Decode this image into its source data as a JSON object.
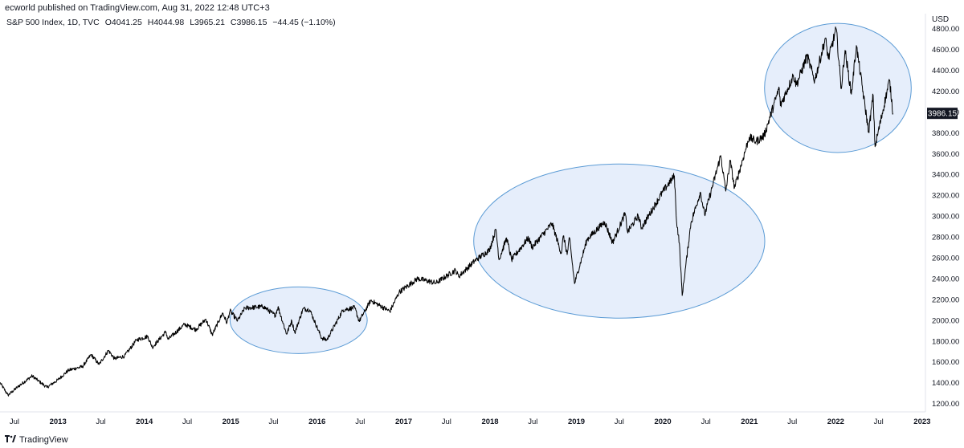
{
  "header": {
    "published": "ecworld published on TradingView.com, Aug 31, 2022 12:48 UTC+3"
  },
  "legend": {
    "symbol": "S&P 500 Index, 1D, TVC",
    "open": "O4041.25",
    "high": "H4044.98",
    "low": "L3965.21",
    "close": "C3986.15",
    "change": "−44.45 (−1.10%)"
  },
  "footer": {
    "brand": "TradingView",
    "logo": "tradingview-logo-icon"
  },
  "colors": {
    "line": "#000000",
    "ellipse_stroke": "#5b9bd5",
    "ellipse_fill": "#e6eefb",
    "price_tag": "#131722",
    "grid": "#ffffff"
  },
  "chart_data": {
    "type": "line",
    "title": "S&P 500 Index, 1D, TVC",
    "currency_label": "USD",
    "last_price_label": "3986.15",
    "y_axis": {
      "ylim": [
        1120,
        4920
      ],
      "ticks": [
        1200,
        1400,
        1600,
        1800,
        2000,
        2200,
        2400,
        2600,
        2800,
        3000,
        3200,
        3400,
        3600,
        3800,
        4000,
        4200,
        4400,
        4600,
        4800
      ],
      "tick_labels": [
        "1200.00",
        "1400.00",
        "1600.00",
        "1800.00",
        "2000.00",
        "2200.00",
        "2400.00",
        "2600.00",
        "2800.00",
        "3000.00",
        "3200.00",
        "3400.00",
        "3600.00",
        "3800.00",
        "4000.00",
        "4200.00",
        "4400.00",
        "4600.00",
        "4800.00"
      ]
    },
    "x_axis": {
      "xlim": [
        "2012-05-01",
        "2023-01-15"
      ],
      "ticks": [
        {
          "date": "2012-07-01",
          "label": "Jul",
          "bold": false
        },
        {
          "date": "2013-01-01",
          "label": "2013",
          "bold": true
        },
        {
          "date": "2013-07-01",
          "label": "Jul",
          "bold": false
        },
        {
          "date": "2014-01-01",
          "label": "2014",
          "bold": true
        },
        {
          "date": "2014-07-01",
          "label": "Jul",
          "bold": false
        },
        {
          "date": "2015-01-01",
          "label": "2015",
          "bold": true
        },
        {
          "date": "2015-07-01",
          "label": "Jul",
          "bold": false
        },
        {
          "date": "2016-01-01",
          "label": "2016",
          "bold": true
        },
        {
          "date": "2016-07-01",
          "label": "Jul",
          "bold": false
        },
        {
          "date": "2017-01-01",
          "label": "2017",
          "bold": true
        },
        {
          "date": "2017-07-01",
          "label": "Jul",
          "bold": false
        },
        {
          "date": "2018-01-01",
          "label": "2018",
          "bold": true
        },
        {
          "date": "2018-07-01",
          "label": "Jul",
          "bold": false
        },
        {
          "date": "2019-01-01",
          "label": "2019",
          "bold": true
        },
        {
          "date": "2019-07-01",
          "label": "Jul",
          "bold": false
        },
        {
          "date": "2020-01-01",
          "label": "2020",
          "bold": true
        },
        {
          "date": "2020-07-01",
          "label": "Jul",
          "bold": false
        },
        {
          "date": "2021-01-01",
          "label": "2021",
          "bold": true
        },
        {
          "date": "2021-07-01",
          "label": "Jul",
          "bold": false
        },
        {
          "date": "2022-01-01",
          "label": "2022",
          "bold": true
        },
        {
          "date": "2022-07-01",
          "label": "Jul",
          "bold": false
        },
        {
          "date": "2023-01-01",
          "label": "2023",
          "bold": true
        }
      ]
    },
    "series": [
      {
        "values": [
          [
            "2012-05-01",
            1400
          ],
          [
            "2012-06-04",
            1280
          ],
          [
            "2012-07-15",
            1360
          ],
          [
            "2012-09-14",
            1465
          ],
          [
            "2012-11-15",
            1355
          ],
          [
            "2012-12-31",
            1426
          ],
          [
            "2013-02-15",
            1520
          ],
          [
            "2013-04-15",
            1555
          ],
          [
            "2013-05-21",
            1670
          ],
          [
            "2013-06-24",
            1575
          ],
          [
            "2013-08-02",
            1710
          ],
          [
            "2013-08-28",
            1630
          ],
          [
            "2013-10-09",
            1655
          ],
          [
            "2013-11-29",
            1810
          ],
          [
            "2014-01-15",
            1845
          ],
          [
            "2014-02-04",
            1740
          ],
          [
            "2014-04-02",
            1890
          ],
          [
            "2014-04-11",
            1815
          ],
          [
            "2014-06-20",
            1960
          ],
          [
            "2014-08-07",
            1910
          ],
          [
            "2014-09-18",
            2010
          ],
          [
            "2014-10-15",
            1860
          ],
          [
            "2014-11-28",
            2070
          ],
          [
            "2014-12-16",
            1975
          ],
          [
            "2014-12-29",
            2090
          ],
          [
            "2015-01-30",
            1995
          ],
          [
            "2015-03-02",
            2117
          ],
          [
            "2015-05-20",
            2130
          ],
          [
            "2015-07-08",
            2046
          ],
          [
            "2015-07-20",
            2128
          ],
          [
            "2015-08-25",
            1867
          ],
          [
            "2015-09-16",
            1995
          ],
          [
            "2015-09-29",
            1880
          ],
          [
            "2015-11-03",
            2110
          ],
          [
            "2015-12-01",
            2100
          ],
          [
            "2016-01-20",
            1829
          ],
          [
            "2016-02-11",
            1810
          ],
          [
            "2016-04-20",
            2100
          ],
          [
            "2016-06-08",
            2120
          ],
          [
            "2016-06-27",
            1990
          ],
          [
            "2016-08-15",
            2190
          ],
          [
            "2016-11-04",
            2085
          ],
          [
            "2016-12-13",
            2270
          ],
          [
            "2017-03-01",
            2400
          ],
          [
            "2017-05-17",
            2357
          ],
          [
            "2017-08-08",
            2480
          ],
          [
            "2017-08-21",
            2420
          ],
          [
            "2017-10-31",
            2575
          ],
          [
            "2017-12-29",
            2673
          ],
          [
            "2018-01-26",
            2872
          ],
          [
            "2018-02-08",
            2580
          ],
          [
            "2018-03-12",
            2790
          ],
          [
            "2018-04-02",
            2580
          ],
          [
            "2018-06-12",
            2790
          ],
          [
            "2018-06-28",
            2700
          ],
          [
            "2018-09-20",
            2930
          ],
          [
            "2018-10-29",
            2640
          ],
          [
            "2018-11-07",
            2810
          ],
          [
            "2018-11-23",
            2630
          ],
          [
            "2018-12-03",
            2790
          ],
          [
            "2018-12-24",
            2351
          ],
          [
            "2019-02-15",
            2775
          ],
          [
            "2019-04-30",
            2945
          ],
          [
            "2019-06-03",
            2745
          ],
          [
            "2019-07-26",
            3025
          ],
          [
            "2019-08-05",
            2845
          ],
          [
            "2019-09-19",
            3005
          ],
          [
            "2019-10-03",
            2885
          ],
          [
            "2019-12-31",
            3230
          ],
          [
            "2020-02-19",
            3386
          ],
          [
            "2020-02-28",
            2955
          ],
          [
            "2020-03-11",
            2740
          ],
          [
            "2020-03-23",
            2237
          ],
          [
            "2020-04-29",
            2935
          ],
          [
            "2020-06-08",
            3230
          ],
          [
            "2020-06-26",
            3010
          ],
          [
            "2020-09-02",
            3580
          ],
          [
            "2020-09-23",
            3240
          ],
          [
            "2020-10-12",
            3530
          ],
          [
            "2020-10-30",
            3270
          ],
          [
            "2020-12-31",
            3756
          ],
          [
            "2021-01-29",
            3715
          ],
          [
            "2021-03-04",
            3770
          ],
          [
            "2021-05-07",
            4230
          ],
          [
            "2021-05-12",
            4060
          ],
          [
            "2021-07-06",
            4350
          ],
          [
            "2021-07-19",
            4260
          ],
          [
            "2021-09-02",
            4537
          ],
          [
            "2021-10-04",
            4300
          ],
          [
            "2021-11-18",
            4704
          ],
          [
            "2021-12-01",
            4510
          ],
          [
            "2022-01-03",
            4796
          ],
          [
            "2022-01-24",
            4222
          ],
          [
            "2022-02-09",
            4590
          ],
          [
            "2022-03-08",
            4170
          ],
          [
            "2022-03-29",
            4637
          ],
          [
            "2022-05-20",
            3810
          ],
          [
            "2022-06-08",
            4160
          ],
          [
            "2022-06-16",
            3666
          ],
          [
            "2022-08-16",
            4305
          ],
          [
            "2022-08-31",
            3986
          ]
        ]
      }
    ],
    "annotations": [
      {
        "type": "ellipse",
        "x_center": "2015-10-15",
        "y_center": 2000,
        "x_radius_days": 290,
        "y_radius": 320
      },
      {
        "type": "ellipse",
        "x_center": "2019-07-01",
        "y_center": 2760,
        "x_radius_days": 615,
        "y_radius": 740
      },
      {
        "type": "ellipse",
        "x_center": "2022-01-10",
        "y_center": 4230,
        "x_radius_days": 310,
        "y_radius": 620
      }
    ]
  }
}
